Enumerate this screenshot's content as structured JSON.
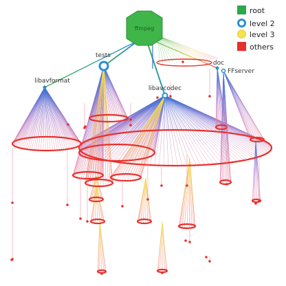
{
  "root": {
    "label": "ffmpeg",
    "color": "#3fb54a"
  },
  "nodes": [
    {
      "id": "tests",
      "label": "tests"
    },
    {
      "id": "libavformat",
      "label": "libavformat"
    },
    {
      "id": "libavcodec",
      "label": "libavcodec"
    },
    {
      "id": "doc",
      "label": "doc"
    },
    {
      "id": "ffserver",
      "label": "FFserver"
    }
  ],
  "legend": [
    {
      "id": "root",
      "label": "root",
      "color": "#2aa84a",
      "shape": "square"
    },
    {
      "id": "level2",
      "label": "level 2",
      "color": "#2a8fd0",
      "shape": "ring"
    },
    {
      "id": "level3",
      "label": "level 3",
      "color": "#f3e24a",
      "shape": "circle"
    },
    {
      "id": "others",
      "label": "others",
      "color": "#e8302c",
      "shape": "square"
    }
  ],
  "colors": {
    "edge_top": "#3a72d8",
    "edge_mid": "#b078c8",
    "edge_low": "#f28a9a",
    "yellow_edge": "#f0d060",
    "red_node": "#e8302c",
    "level2_ring": "#2a8fd0",
    "root_green": "#3fb54a"
  }
}
